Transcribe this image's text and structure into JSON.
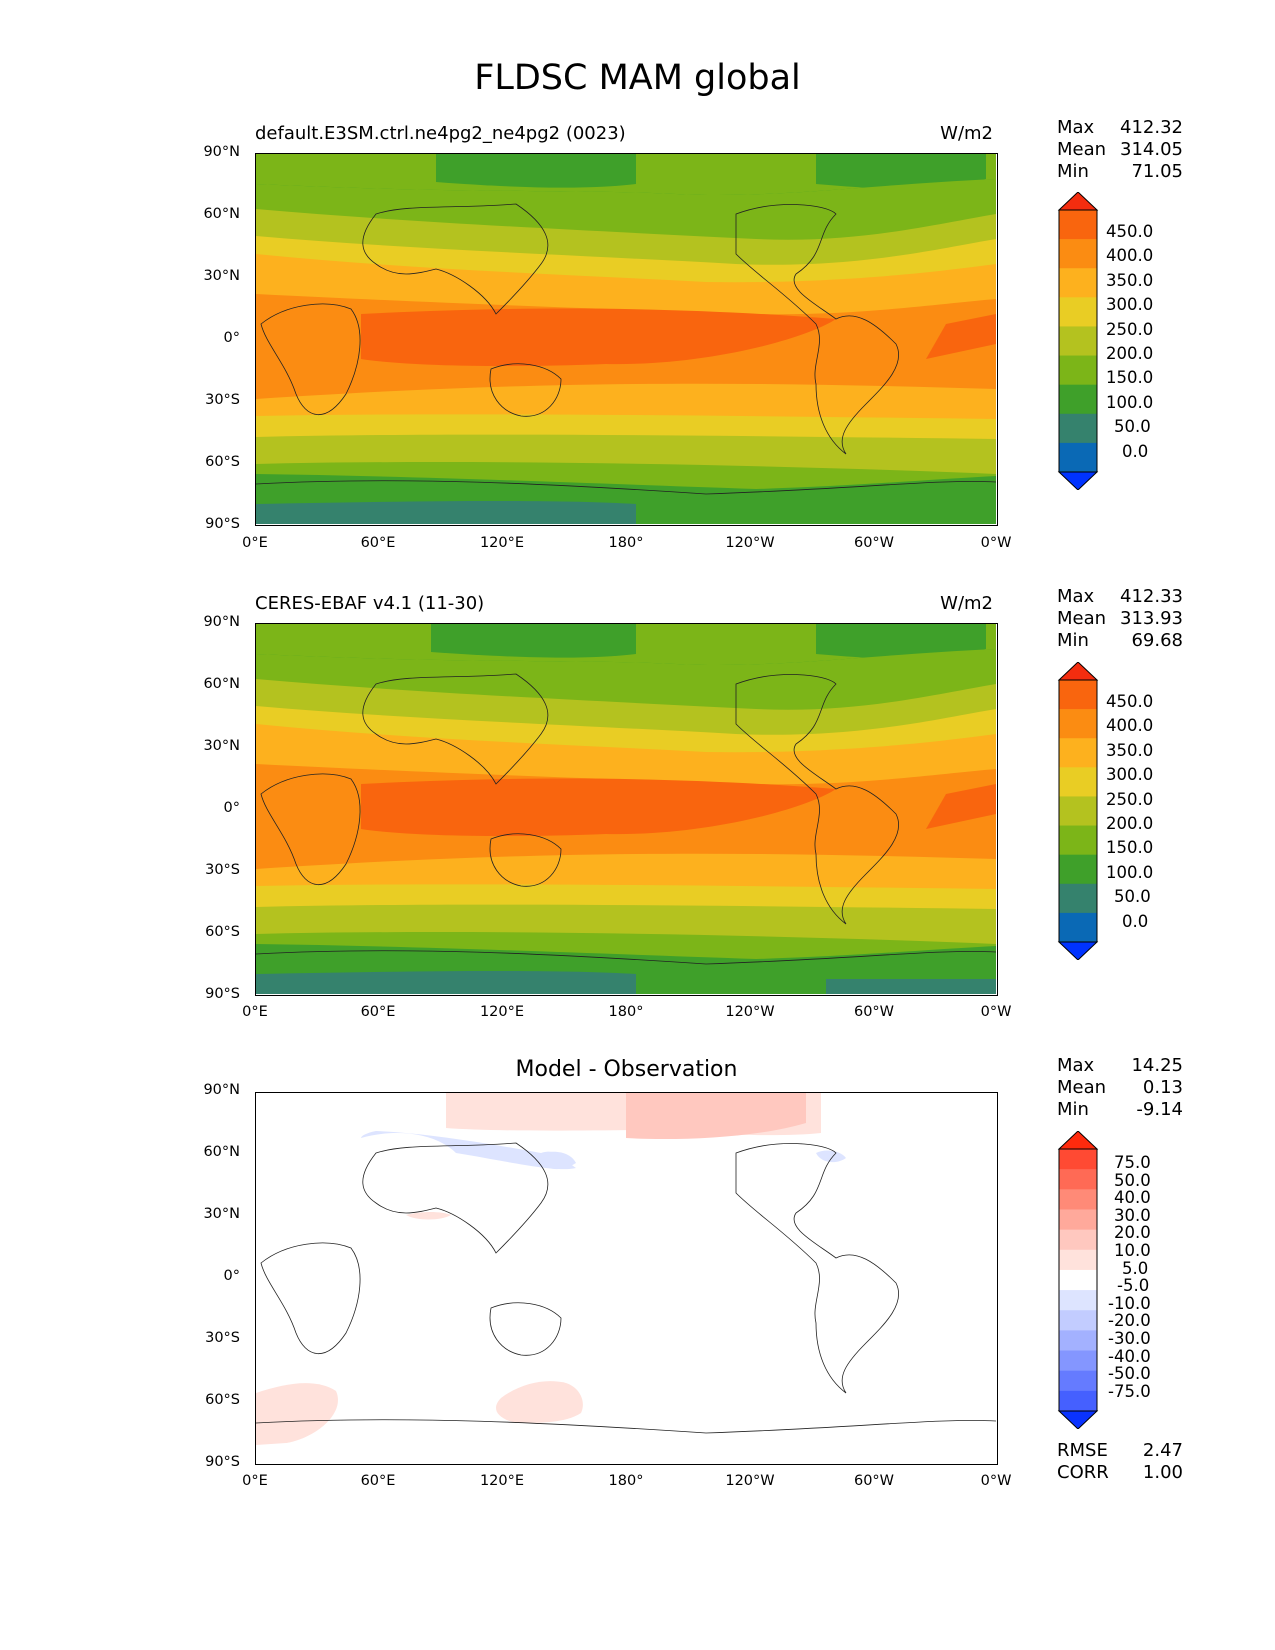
{
  "figure": {
    "title": "FLDSC MAM global"
  },
  "axes": {
    "lat_ticks": [
      "90°N",
      "60°N",
      "30°N",
      "0°",
      "30°S",
      "60°S",
      "90°S"
    ],
    "lon_ticks": [
      "0°E",
      "60°E",
      "120°E",
      "180°",
      "120°W",
      "60°W",
      "0°W"
    ]
  },
  "panels": {
    "test": {
      "title": "default.E3SM.ctrl.ne4pg2_ne4pg2 (0023)",
      "units": "W/m2",
      "stats": {
        "max_label": "Max",
        "max": "412.32",
        "mean_label": "Mean",
        "mean": "314.05",
        "min_label": "Min",
        "min": "71.05"
      }
    },
    "ref": {
      "title": "CERES-EBAF v4.1 (11-30)",
      "units": "W/m2",
      "stats": {
        "max_label": "Max",
        "max": "412.33",
        "mean_label": "Mean",
        "mean": "313.93",
        "min_label": "Min",
        "min": "69.68"
      }
    },
    "diff": {
      "title": "Model - Observation",
      "stats": {
        "max_label": "Max",
        "max": "14.25",
        "mean_label": "Mean",
        "mean": "0.13",
        "min_label": "Min",
        "min": "-9.14"
      },
      "metrics": {
        "rmse_label": "RMSE",
        "rmse": "2.47",
        "corr_label": "CORR",
        "corr": "1.00"
      }
    }
  },
  "colorbars": {
    "field": {
      "labels": [
        "450.0",
        "400.0",
        "350.0",
        "300.0",
        "250.0",
        "200.0",
        "150.0",
        "100.0",
        "50.0",
        "0.0"
      ],
      "colors": [
        "#f42d0f",
        "#f9650e",
        "#fb8c12",
        "#fdb11e",
        "#e9cd24",
        "#b4c21f",
        "#7cb518",
        "#3fa02a",
        "#35826d",
        "#0a69b5",
        "#0033ff"
      ]
    },
    "diff": {
      "labels": [
        "75.0",
        "50.0",
        "40.0",
        "30.0",
        "20.0",
        "10.0",
        "5.0",
        "-5.0",
        "-10.0",
        "-20.0",
        "-30.0",
        "-40.0",
        "-50.0",
        "-75.0"
      ],
      "colors": [
        "#ff2a0d",
        "#ff4a33",
        "#ff6a55",
        "#ff8a77",
        "#ffa99b",
        "#ffc8bf",
        "#ffe2dc",
        "#ffffff",
        "#dde4ff",
        "#c2ccff",
        "#a3b1ff",
        "#8496ff",
        "#657bff",
        "#4560ff",
        "#0a33ff"
      ]
    }
  }
}
